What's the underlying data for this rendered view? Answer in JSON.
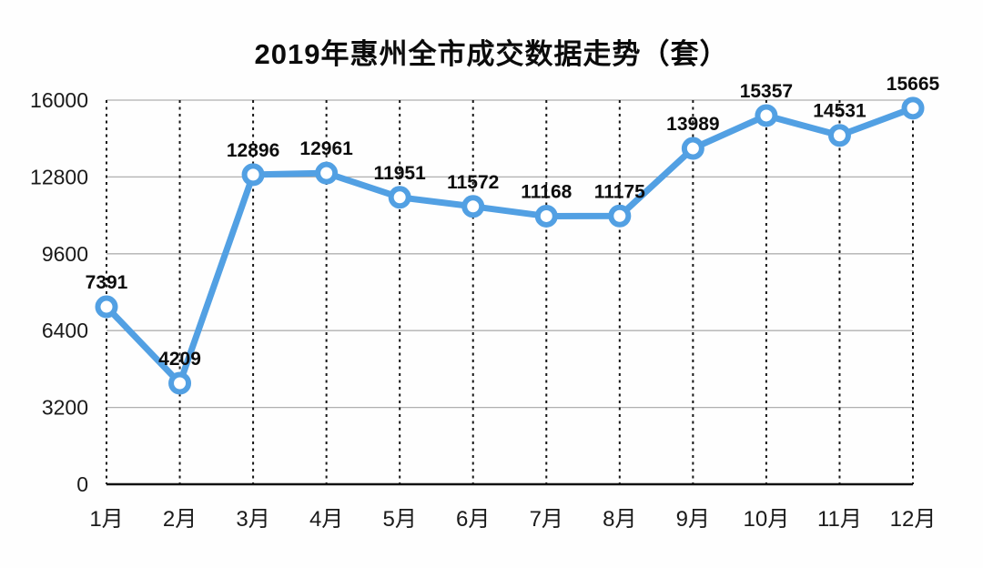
{
  "title": "2019年惠州全市成交数据走势（套）",
  "chart_data": {
    "type": "line",
    "title": "2019年惠州全市成交数据走势（套）",
    "categories": [
      "1月",
      "2月",
      "3月",
      "4月",
      "5月",
      "6月",
      "7月",
      "8月",
      "9月",
      "10月",
      "11月",
      "12月"
    ],
    "values": [
      7391,
      4209,
      12896,
      12961,
      11951,
      11572,
      11168,
      11175,
      13989,
      15357,
      14531,
      15665
    ],
    "xlabel": "",
    "ylabel": "",
    "ylim": [
      0,
      16000
    ],
    "yticks": [
      0,
      3200,
      6400,
      9600,
      12800,
      16000
    ],
    "grid": {
      "horizontal": "solid-gray",
      "vertical": "dashed-black"
    },
    "legend": "none",
    "data_labels": "above-points-bold",
    "colors": {
      "line": "#52A0E3",
      "marker_fill": "#ffffff",
      "grid": "#b0b0b0",
      "dash": "#161616",
      "axis": "#111111",
      "text": "#111111",
      "background": "#fefefe"
    }
  }
}
